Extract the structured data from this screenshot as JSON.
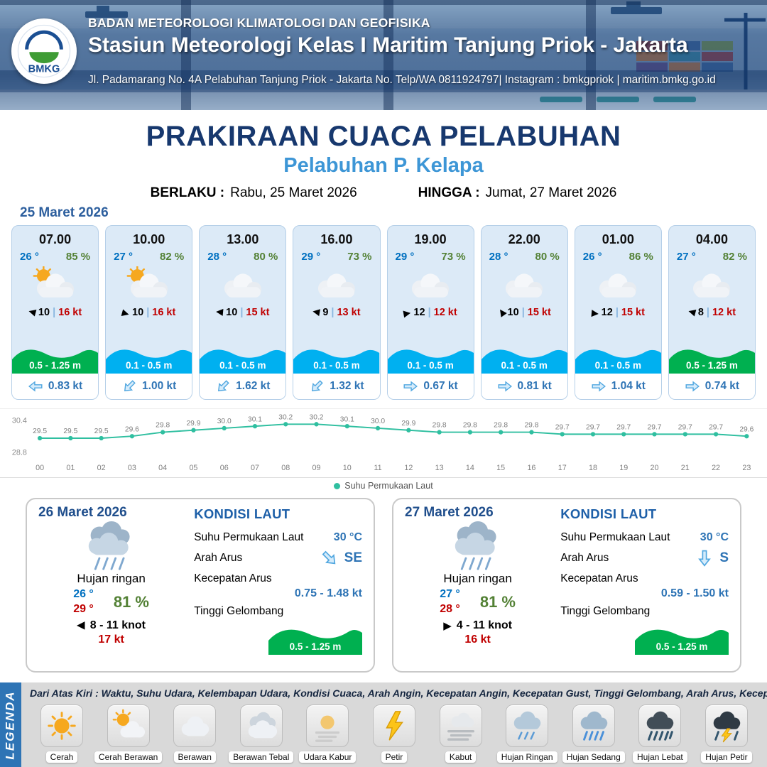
{
  "header": {
    "org": "BADAN METEOROLOGI KLIMATOLOGI DAN GEOFISIKA",
    "station": "Stasiun Meteorologi Kelas I Maritim Tanjung Priok - Jakarta",
    "address": "Jl. Padamarang No. 4A Pelabuhan Tanjung Priok - Jakarta No. Telp/WA 0811924797| Instagram : bmkgpriok | maritim.bmkg.go.id",
    "logo_label": "BMKG"
  },
  "title": {
    "main": "PRAKIRAAN CUACA PELABUHAN",
    "port": "Pelabuhan P. Kelapa",
    "berlaku_label": "BERLAKU :",
    "berlaku_value": "Rabu, 25 Maret 2026",
    "hingga_label": "HINGGA :",
    "hingga_value": "Jumat, 27 Maret 2026"
  },
  "forecast_date": "25 Maret 2026",
  "labels": {
    "wind_sep": "|"
  },
  "icons": {
    "wind_arrow": "▶"
  },
  "cards": [
    {
      "time": "07.00",
      "temp": "26 °",
      "humidity": "85 %",
      "condition": "cerah-berawan",
      "wind_deg": 195,
      "wind": "10",
      "gust": "16 kt",
      "wave": "0.5 - 1.25 m",
      "wave_color": "#00b050",
      "current_deg": 180,
      "current": "0.83 kt"
    },
    {
      "time": "10.00",
      "temp": "27 °",
      "humidity": "82 %",
      "condition": "cerah-berawan",
      "wind_deg": 15,
      "wind": "10",
      "gust": "16 kt",
      "wave": "0.1 - 0.5 m",
      "wave_color": "#00b0f0",
      "current_deg": 135,
      "current": "1.00 kt"
    },
    {
      "time": "13.00",
      "temp": "28 °",
      "humidity": "80 %",
      "condition": "berawan",
      "wind_deg": 185,
      "wind": "10",
      "gust": "15 kt",
      "wave": "0.1 - 0.5 m",
      "wave_color": "#00b0f0",
      "current_deg": 135,
      "current": "1.62 kt"
    },
    {
      "time": "16.00",
      "temp": "29 °",
      "humidity": "73 %",
      "condition": "berawan",
      "wind_deg": 190,
      "wind": "9",
      "gust": "13 kt",
      "wave": "0.1 - 0.5 m",
      "wave_color": "#00b0f0",
      "current_deg": 135,
      "current": "1.32 kt"
    },
    {
      "time": "19.00",
      "temp": "29 °",
      "humidity": "73 %",
      "condition": "berawan",
      "wind_deg": 350,
      "wind": "12",
      "gust": "12 kt",
      "wave": "0.1 - 0.5 m",
      "wave_color": "#00b0f0",
      "current_deg": 0,
      "current": "0.67 kt"
    },
    {
      "time": "22.00",
      "temp": "28 °",
      "humidity": "80 %",
      "condition": "berawan",
      "wind_deg": 235,
      "wind": "10",
      "gust": "15 kt",
      "wave": "0.1 - 0.5 m",
      "wave_color": "#00b0f0",
      "current_deg": 0,
      "current": "0.81 kt"
    },
    {
      "time": "01.00",
      "temp": "26 °",
      "humidity": "86 %",
      "condition": "berawan",
      "wind_deg": 5,
      "wind": "12",
      "gust": "15 kt",
      "wave": "0.1 - 0.5 m",
      "wave_color": "#00b0f0",
      "current_deg": 0,
      "current": "1.04 kt"
    },
    {
      "time": "04.00",
      "temp": "27 °",
      "humidity": "82 %",
      "condition": "berawan",
      "wind_deg": 195,
      "wind": "8",
      "gust": "12 kt",
      "wave": "0.5 - 1.25 m",
      "wave_color": "#00b050",
      "current_deg": 0,
      "current": "0.74 kt"
    }
  ],
  "chart_data": {
    "type": "line",
    "series_name": "Suhu Permukaan Laut",
    "x": [
      "00",
      "01",
      "02",
      "03",
      "04",
      "05",
      "06",
      "07",
      "08",
      "09",
      "10",
      "11",
      "12",
      "13",
      "14",
      "15",
      "16",
      "17",
      "18",
      "19",
      "20",
      "21",
      "22",
      "23"
    ],
    "values": [
      29.5,
      29.5,
      29.5,
      29.6,
      29.8,
      29.9,
      30.0,
      30.1,
      30.2,
      30.2,
      30.1,
      30.0,
      29.9,
      29.8,
      29.8,
      29.8,
      29.8,
      29.7,
      29.7,
      29.7,
      29.7,
      29.7,
      29.7,
      29.6
    ],
    "ylim": [
      28.8,
      30.4
    ],
    "line_color": "#2fbfa0",
    "legend_position": "bottom",
    "grid": false
  },
  "summaries": [
    {
      "date": "26 Maret 2026",
      "condition": "Hujan ringan",
      "temp_min": "26 °",
      "temp_max": "29 °",
      "humidity": "81 %",
      "wind_deg": 180,
      "wind_range": "8  - 11 knot",
      "gust": "17 kt",
      "sea": {
        "title": "KONDISI LAUT",
        "sst_label": "Suhu Permukaan Laut",
        "sst": "30 °C",
        "current_dir_label": "Arah Arus",
        "current_dir": "SE",
        "current_dir_deg": 45,
        "current_speed_label": "Kecepatan Arus",
        "current_speed": "0.75  - 1.48 kt",
        "wave_label": "Tinggi Gelombang",
        "wave": "0.5 - 1.25 m",
        "wave_color": "#00b050"
      }
    },
    {
      "date": "27 Maret 2026",
      "condition": "Hujan ringan",
      "temp_min": "27 °",
      "temp_max": "28 °",
      "humidity": "81 %",
      "wind_deg": 0,
      "wind_range": "4  - 11 knot",
      "gust": "16 kt",
      "sea": {
        "title": "KONDISI LAUT",
        "sst_label": "Suhu Permukaan Laut",
        "sst": "30 °C",
        "current_dir_label": "Arah Arus",
        "current_dir": "S",
        "current_dir_deg": 90,
        "current_speed_label": "Kecepatan Arus",
        "current_speed": "0.59  - 1.50 kt",
        "wave_label": "Tinggi Gelombang",
        "wave": "0.5 - 1.25 m",
        "wave_color": "#00b050"
      }
    }
  ],
  "legend": {
    "vertical_label": "LEGENDA",
    "note": "Dari Atas Kiri : Waktu, Suhu Udara, Kelembapan Udara, Kondisi Cuaca, Arah Angin, Kecepatan Angin, Kecepatan Gust, Tinggi Gelombang, Arah Arus, Kecepatan Arus",
    "items": [
      {
        "label": "Cerah"
      },
      {
        "label": "Cerah Berawan"
      },
      {
        "label": "Berawan"
      },
      {
        "label": "Berawan Tebal"
      },
      {
        "label": "Udara Kabur"
      },
      {
        "label": "Petir"
      },
      {
        "label": "Kabut"
      },
      {
        "label": "Hujan Ringan"
      },
      {
        "label": "Hujan Sedang"
      },
      {
        "label": "Hujan Lebat"
      },
      {
        "label": "Hujan Petir"
      }
    ]
  }
}
